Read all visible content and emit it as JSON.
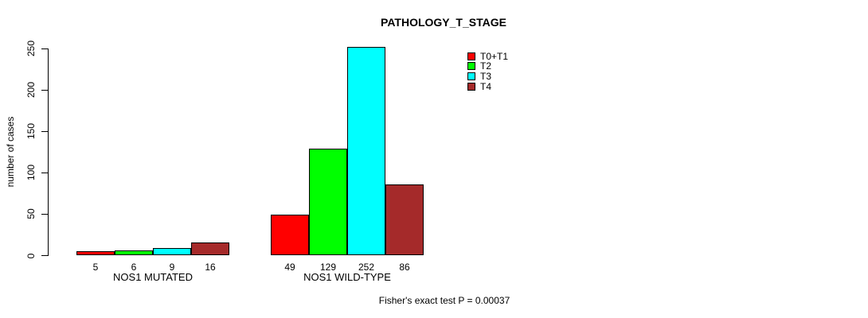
{
  "chart_data": {
    "type": "bar",
    "title": "PATHOLOGY_T_STAGE",
    "ylabel": "number of cases",
    "xlabel": "",
    "categories": [
      "NOS1 MUTATED",
      "NOS1 WILD-TYPE"
    ],
    "series": [
      {
        "name": "T0+T1",
        "color": "#FF0000",
        "values": [
          5,
          49
        ]
      },
      {
        "name": "T2",
        "color": "#00FF00",
        "values": [
          6,
          129
        ]
      },
      {
        "name": "T3",
        "color": "#00FFFF",
        "values": [
          9,
          252
        ]
      },
      {
        "name": "T4",
        "color": "#A52A2A",
        "values": [
          16,
          86
        ]
      }
    ],
    "yticks": [
      0,
      50,
      100,
      150,
      200,
      250
    ],
    "ylim": [
      0,
      250
    ],
    "grid": false,
    "legend_position": "top-right",
    "value_labels_shown": true,
    "annotation": "Fisher's exact test P = 0.00037"
  }
}
